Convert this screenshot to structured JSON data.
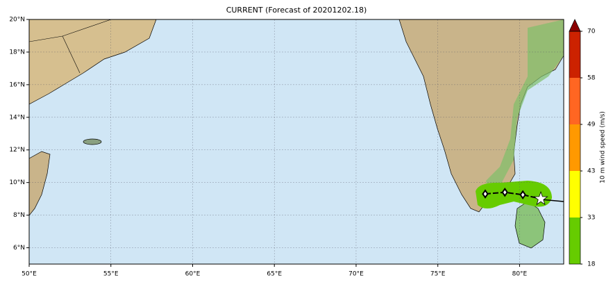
{
  "map": {
    "title": "CURRENT (Forecast of 20201202.18)",
    "xlim": [
      50,
      82.7
    ],
    "ylim": [
      5,
      20
    ],
    "xticks": [
      {
        "value": 50,
        "label": "50°E"
      },
      {
        "value": 55,
        "label": "55°E"
      },
      {
        "value": 60,
        "label": "60°E"
      },
      {
        "value": 65,
        "label": "65°E"
      },
      {
        "value": 70,
        "label": "70°E"
      },
      {
        "value": 75,
        "label": "75°E"
      },
      {
        "value": 80,
        "label": "80°E"
      }
    ],
    "yticks": [
      {
        "value": 6,
        "label": "6°N"
      },
      {
        "value": 8,
        "label": "8°N"
      },
      {
        "value": 10,
        "label": "10°N"
      },
      {
        "value": 12,
        "label": "12°N"
      },
      {
        "value": 14,
        "label": "14°N"
      },
      {
        "value": 16,
        "label": "16°N"
      },
      {
        "value": 18,
        "label": "18°N"
      },
      {
        "value": 20,
        "label": "20°N"
      }
    ],
    "grid": true,
    "track": {
      "lon": [
        77.9,
        79.1,
        80.2
      ],
      "lat": [
        9.3,
        9.4,
        9.25
      ]
    },
    "current_position": {
      "lon": 81.3,
      "lat": 9.0
    }
  },
  "colorbar": {
    "label": "10 m wind speed (m/s)",
    "levels": [
      18,
      33,
      43,
      49,
      58,
      70
    ],
    "colors": [
      "#66cc00",
      "#ffff00",
      "#ff9900",
      "#ff6622",
      "#cc2200"
    ],
    "extend_color": "#8b0000"
  }
}
